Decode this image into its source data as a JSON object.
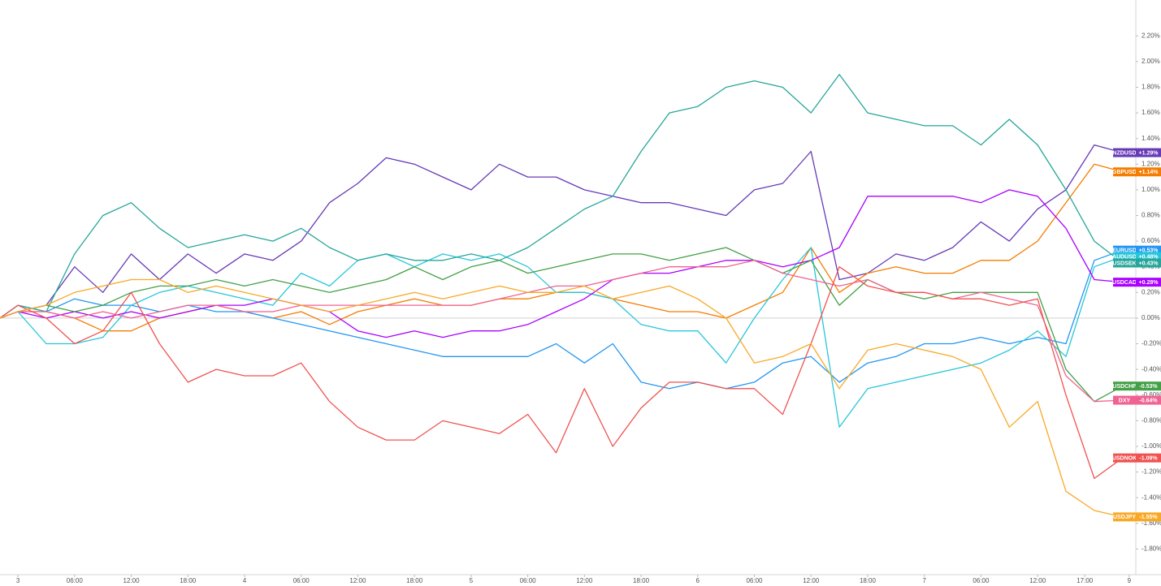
{
  "chart_data": {
    "type": "line",
    "x": [
      -1.9,
      0,
      3,
      6,
      9,
      12,
      15,
      18,
      21,
      24,
      27,
      30,
      33,
      36,
      39,
      42,
      45,
      48,
      51,
      54,
      57,
      60,
      63,
      66,
      69,
      72,
      75,
      78,
      81,
      84,
      87,
      90,
      93,
      96,
      99,
      102,
      105,
      108,
      111,
      114,
      117
    ],
    "xlim": [
      -1.9,
      118.4
    ],
    "xticks": [
      {
        "value": 0,
        "label": "3"
      },
      {
        "value": 6,
        "label": "06:00"
      },
      {
        "value": 12,
        "label": "12:00"
      },
      {
        "value": 18,
        "label": "18:00"
      },
      {
        "value": 24,
        "label": "4"
      },
      {
        "value": 30,
        "label": "06:00"
      },
      {
        "value": 36,
        "label": "12:00"
      },
      {
        "value": 42,
        "label": "18:00"
      },
      {
        "value": 48,
        "label": "5"
      },
      {
        "value": 54,
        "label": "06:00"
      },
      {
        "value": 60,
        "label": "12:00"
      },
      {
        "value": 66,
        "label": "18:00"
      },
      {
        "value": 72,
        "label": "6"
      },
      {
        "value": 78,
        "label": "06:00"
      },
      {
        "value": 84,
        "label": "12:00"
      },
      {
        "value": 90,
        "label": "18:00"
      },
      {
        "value": 96,
        "label": "7"
      },
      {
        "value": 102,
        "label": "06:00"
      },
      {
        "value": 108,
        "label": "12:00"
      },
      {
        "value": 113,
        "label": "17:00"
      },
      {
        "value": 117.7,
        "label": "9"
      }
    ],
    "ylim": [
      -2.0,
      2.48
    ],
    "yticks": [
      {
        "value": 2.2,
        "label": "2.20%"
      },
      {
        "value": 2.0,
        "label": "2.00%"
      },
      {
        "value": 1.8,
        "label": "1.80%"
      },
      {
        "value": 1.6,
        "label": "1.60%"
      },
      {
        "value": 1.4,
        "label": "1.40%"
      },
      {
        "value": 1.2,
        "label": "1.20%"
      },
      {
        "value": 1.0,
        "label": "1.00%"
      },
      {
        "value": 0.8,
        "label": "0.80%"
      },
      {
        "value": 0.6,
        "label": "0.60%"
      },
      {
        "value": 0.4,
        "label": "0.40%"
      },
      {
        "value": 0.2,
        "label": "0.20%"
      },
      {
        "value": 0,
        "label": "0.00%"
      },
      {
        "value": -0.2,
        "label": "-0.20%"
      },
      {
        "value": -0.4,
        "label": "-0.40%"
      },
      {
        "value": -0.6,
        "label": "-0.60%"
      },
      {
        "value": -0.8,
        "label": "-0.80%"
      },
      {
        "value": -1.0,
        "label": "-1.00%"
      },
      {
        "value": -1.2,
        "label": "-1.20%"
      },
      {
        "value": -1.4,
        "label": "-1.40%"
      },
      {
        "value": -1.6,
        "label": "-1.60%"
      },
      {
        "value": -1.8,
        "label": "-1.80%"
      }
    ],
    "series": [
      {
        "name": "NZDUSD",
        "color": "#673ab7",
        "last_label": "+1.29%",
        "values": [
          0,
          0.05,
          0.1,
          0.4,
          0.2,
          0.5,
          0.3,
          0.5,
          0.35,
          0.5,
          0.45,
          0.6,
          0.9,
          1.05,
          1.25,
          1.2,
          1.1,
          1.0,
          1.2,
          1.1,
          1.1,
          1.0,
          0.95,
          0.9,
          0.9,
          0.85,
          0.8,
          1.0,
          1.05,
          1.3,
          0.3,
          0.35,
          0.5,
          0.45,
          0.55,
          0.75,
          0.6,
          0.85,
          1.0,
          1.35,
          1.29
        ]
      },
      {
        "name": "GBPUSD",
        "color": "#f57c00",
        "last_label": "+1.14%",
        "values": [
          0,
          0.05,
          0.05,
          0.0,
          -0.1,
          -0.1,
          0.0,
          0.05,
          0.1,
          0.05,
          0.0,
          0.05,
          -0.05,
          0.05,
          0.1,
          0.15,
          0.1,
          0.1,
          0.15,
          0.15,
          0.2,
          0.2,
          0.15,
          0.1,
          0.05,
          0.05,
          0.0,
          0.1,
          0.2,
          0.55,
          0.2,
          0.35,
          0.4,
          0.35,
          0.35,
          0.45,
          0.45,
          0.6,
          0.9,
          1.2,
          1.14
        ]
      },
      {
        "name": "EURUSD",
        "color": "#2196f3",
        "last_label": "+0.53%",
        "values": [
          0,
          0.1,
          0.05,
          0.15,
          0.1,
          0.1,
          0.05,
          0.1,
          0.05,
          0.05,
          0.0,
          -0.05,
          -0.1,
          -0.15,
          -0.2,
          -0.25,
          -0.3,
          -0.3,
          -0.3,
          -0.3,
          -0.2,
          -0.35,
          -0.2,
          -0.5,
          -0.55,
          -0.5,
          -0.55,
          -0.5,
          -0.35,
          -0.3,
          -0.5,
          -0.35,
          -0.3,
          -0.2,
          -0.2,
          -0.15,
          -0.2,
          -0.15,
          -0.2,
          0.45,
          0.53
        ]
      },
      {
        "name": "AUDUSD",
        "color": "#26c6da",
        "last_label": "+0.48%",
        "values": [
          0,
          0.05,
          -0.2,
          -0.2,
          -0.15,
          0.1,
          0.2,
          0.25,
          0.2,
          0.15,
          0.1,
          0.35,
          0.25,
          0.45,
          0.5,
          0.4,
          0.5,
          0.45,
          0.5,
          0.4,
          0.2,
          0.2,
          0.15,
          -0.05,
          -0.1,
          -0.1,
          -0.35,
          0.0,
          0.3,
          0.55,
          -0.85,
          -0.55,
          -0.5,
          -0.45,
          -0.4,
          -0.35,
          -0.25,
          -0.1,
          -0.3,
          0.4,
          0.48
        ]
      },
      {
        "name": "USDSEK",
        "color": "#26a69a",
        "last_label": "+0.43%",
        "values": [
          0,
          0.1,
          0.05,
          0.5,
          0.8,
          0.9,
          0.7,
          0.55,
          0.6,
          0.65,
          0.6,
          0.7,
          0.55,
          0.45,
          0.5,
          0.45,
          0.45,
          0.5,
          0.45,
          0.55,
          0.7,
          0.85,
          0.95,
          1.3,
          1.6,
          1.65,
          1.8,
          1.85,
          1.8,
          1.6,
          1.9,
          1.6,
          1.55,
          1.5,
          1.5,
          1.35,
          1.55,
          1.35,
          1.0,
          0.6,
          0.43
        ]
      },
      {
        "name": "USDCAD",
        "color": "#aa00ff",
        "last_label": "+0.28%",
        "values": [
          0,
          0.05,
          0.0,
          0.05,
          0.0,
          0.05,
          0.0,
          0.05,
          0.1,
          0.1,
          0.15,
          0.1,
          0.05,
          -0.1,
          -0.15,
          -0.1,
          -0.15,
          -0.1,
          -0.1,
          -0.05,
          0.05,
          0.15,
          0.3,
          0.35,
          0.35,
          0.4,
          0.45,
          0.45,
          0.4,
          0.45,
          0.55,
          0.95,
          0.95,
          0.95,
          0.95,
          0.9,
          1.0,
          0.95,
          0.7,
          0.3,
          0.28
        ]
      },
      {
        "name": "USDCHF",
        "color": "#43a047",
        "last_label": "-0.53%",
        "values": [
          0,
          0.05,
          0.1,
          0.05,
          0.1,
          0.2,
          0.25,
          0.25,
          0.3,
          0.25,
          0.3,
          0.25,
          0.2,
          0.25,
          0.3,
          0.4,
          0.3,
          0.4,
          0.45,
          0.35,
          0.4,
          0.45,
          0.5,
          0.5,
          0.45,
          0.5,
          0.55,
          0.45,
          0.35,
          0.45,
          0.1,
          0.3,
          0.2,
          0.15,
          0.2,
          0.2,
          0.2,
          0.2,
          -0.4,
          -0.65,
          -0.53
        ]
      },
      {
        "name": "DXY",
        "color": "#f06292",
        "last_label": "-0.64%",
        "values": [
          0,
          0.05,
          0.05,
          0.0,
          0.05,
          0.0,
          0.05,
          0.1,
          0.1,
          0.05,
          0.05,
          0.1,
          0.1,
          0.1,
          0.1,
          0.1,
          0.1,
          0.1,
          0.15,
          0.2,
          0.25,
          0.25,
          0.3,
          0.35,
          0.4,
          0.4,
          0.4,
          0.45,
          0.35,
          0.3,
          0.25,
          0.3,
          0.2,
          0.2,
          0.15,
          0.2,
          0.15,
          0.1,
          -0.45,
          -0.65,
          -0.64
        ]
      },
      {
        "name": "USDNOK",
        "color": "#ef5350",
        "last_label": "-1.09%",
        "values": [
          0,
          0.1,
          0.0,
          -0.2,
          -0.1,
          0.2,
          -0.2,
          -0.5,
          -0.4,
          -0.45,
          -0.45,
          -0.35,
          -0.65,
          -0.85,
          -0.95,
          -0.95,
          -0.8,
          -0.85,
          -0.9,
          -0.75,
          -1.05,
          -0.55,
          -1.0,
          -0.7,
          -0.5,
          -0.5,
          -0.55,
          -0.55,
          -0.75,
          -0.2,
          0.4,
          0.25,
          0.2,
          0.2,
          0.15,
          0.15,
          0.1,
          0.15,
          -0.6,
          -1.25,
          -1.09
        ]
      },
      {
        "name": "USDJPY",
        "color": "#f9a825",
        "last_label": "-1.55%",
        "values": [
          0,
          0.05,
          0.1,
          0.2,
          0.25,
          0.3,
          0.3,
          0.2,
          0.25,
          0.2,
          0.15,
          0.1,
          0.05,
          0.1,
          0.15,
          0.2,
          0.15,
          0.2,
          0.25,
          0.2,
          0.2,
          0.25,
          0.15,
          0.2,
          0.25,
          0.15,
          0.0,
          -0.35,
          -0.3,
          -0.2,
          -0.55,
          -0.25,
          -0.2,
          -0.25,
          -0.3,
          -0.4,
          -0.85,
          -0.65,
          -1.35,
          -1.5,
          -1.55
        ]
      }
    ]
  }
}
